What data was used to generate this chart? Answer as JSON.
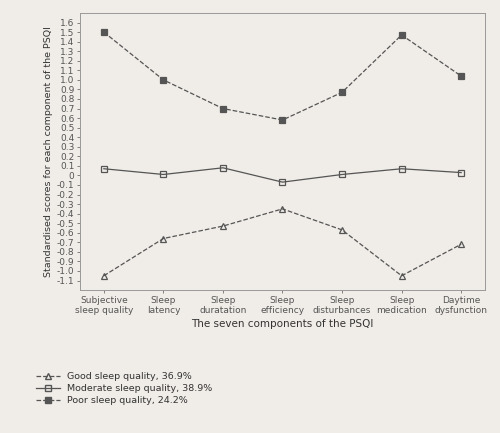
{
  "categories": [
    "Subjective\nsleep quality",
    "Sleep\nlatency",
    "Sleep\nduratation",
    "Sleep\nefficiency",
    "Sleep\ndisturbances",
    "Sleep\nmedication",
    "Daytime\ndysfunction"
  ],
  "good_sleep": [
    -1.05,
    -0.66,
    -0.53,
    -0.35,
    -0.57,
    -1.05,
    -0.72
  ],
  "moderate_sleep": [
    0.07,
    0.01,
    0.08,
    -0.07,
    0.01,
    0.07,
    0.03
  ],
  "poor_sleep": [
    1.5,
    1.0,
    0.7,
    0.58,
    0.87,
    1.47,
    1.04
  ],
  "good_label": "Good sleep quality, 36.9%",
  "moderate_label": "Moderate sleep quality, 38.9%",
  "poor_label": "Poor sleep quality, 24.2%",
  "xlabel": "The seven components of the PSQI",
  "ylabel": "Standardised scores for each component of the PSQI",
  "ylim": [
    -1.2,
    1.7
  ],
  "ytick_min": -1.1,
  "ytick_max": 1.6,
  "ytick_step": 0.1,
  "line_color": "#555555",
  "background_color": "#f0ede8"
}
